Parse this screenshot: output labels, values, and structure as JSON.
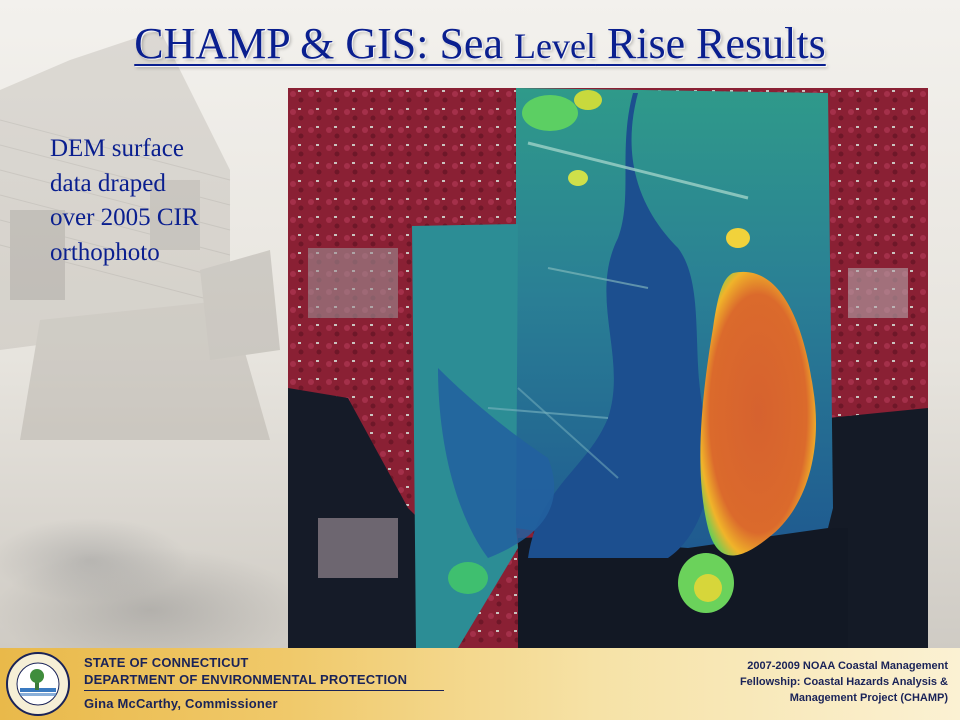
{
  "slide": {
    "title_part1": "CHAMP & GIS: Sea ",
    "title_part2": "Level",
    "title_part3": " Rise Results",
    "caption_lines": [
      "DEM surface",
      "data draped",
      "over 2005 CIR",
      "orthophoto"
    ]
  },
  "footer": {
    "agency_line1": "STATE OF CONNECTICUT",
    "agency_line2": "DEPARTMENT OF ENVIRONMENTAL PROTECTION",
    "commissioner": "Gina McCarthy, Commissioner",
    "fellowship_line1": "2007-2009 NOAA Coastal Management",
    "fellowship_line2": "Fellowship: Coastal Hazards Analysis &",
    "fellowship_line3": "Management Project (CHAMP)",
    "seal_text": "STATE OF CONNECTICUT DEPARTMENT OF ENVIRONMENTAL PROTECTION"
  },
  "colors": {
    "title": "#0a1f8f",
    "footer_text": "#1a2358",
    "dem_high": "#d9622f",
    "dem_mid": "#2aa47a",
    "dem_low": "#1b4f8e",
    "cir_vegetation": "#8e2236",
    "water": "#101621"
  }
}
